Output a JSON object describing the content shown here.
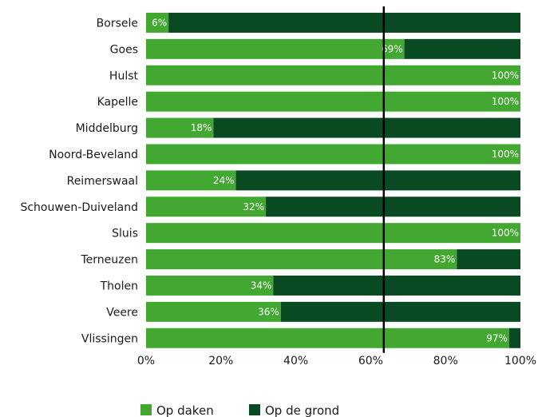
{
  "chart_data": {
    "type": "bar",
    "orientation": "horizontal",
    "stacked": true,
    "categories": [
      "Borsele",
      "Goes",
      "Hulst",
      "Kapelle",
      "Middelburg",
      "Noord-Beveland",
      "Reimerswaal",
      "Schouwen-Duiveland",
      "Sluis",
      "Terneuzen",
      "Tholen",
      "Veere",
      "Vlissingen"
    ],
    "series": [
      {
        "name": "Op daken",
        "color": "#43a832",
        "values": [
          6,
          69,
          100,
          100,
          18,
          100,
          24,
          32,
          100,
          83,
          34,
          36,
          97
        ]
      },
      {
        "name": "Op de grond",
        "color": "#0a4a22",
        "values": [
          94,
          31,
          0,
          0,
          82,
          0,
          76,
          68,
          0,
          17,
          66,
          64,
          3
        ]
      }
    ],
    "data_labels": [
      "6%",
      "69%",
      "100%",
      "100%",
      "18%",
      "100%",
      "24%",
      "32%",
      "100%",
      "83%",
      "34%",
      "36%",
      "97%"
    ],
    "x_ticks": [
      "0%",
      "20%",
      "40%",
      "60%",
      "80%",
      "100%"
    ],
    "xlim": [
      0,
      100
    ],
    "reference_line": 63.5,
    "legend": {
      "position": "bottom",
      "items": [
        "Op daken",
        "Op de grond"
      ]
    },
    "grid": false
  }
}
